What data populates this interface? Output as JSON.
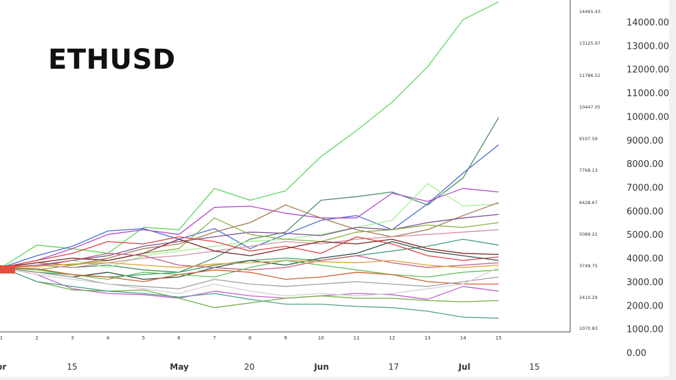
{
  "chart_data": {
    "type": "line",
    "title": "ETHUSD",
    "xlabel": "",
    "ylabel": "",
    "ylim": [
      0,
      15000
    ],
    "grid": false,
    "legend": "none",
    "x": [
      1,
      2,
      3,
      4,
      5,
      6,
      7,
      8,
      9,
      10,
      11,
      12,
      13,
      14,
      15
    ],
    "x_tick_labels": [
      "1",
      "2",
      "3",
      "4",
      "5",
      "6",
      "7",
      "8",
      "9",
      "10",
      "11",
      "12",
      "13",
      "14",
      "15"
    ],
    "date_tick_labels": [
      "pr",
      "15",
      "May",
      "20",
      "Jun",
      "17",
      "Jul",
      "15"
    ],
    "right_axis_ticks": [
      0,
      1000,
      2000,
      3000,
      4000,
      5000,
      6000,
      7000,
      8000,
      9000,
      10000,
      11000,
      12000,
      13000,
      14000
    ],
    "right_axis_labels": [
      "0.00",
      "1000.00",
      "2000.00",
      "3000.00",
      "4000.00",
      "5000.00",
      "6000.00",
      "7000.00",
      "8000.00",
      "9000.00",
      "10000.00",
      "11000.00",
      "12000.00",
      "13000.00",
      "14000.00"
    ],
    "inner_axis_labels": [
      "1070.83",
      "2410.29",
      "3749.75",
      "5089.21",
      "6428.67",
      "7768.13",
      "9107.59",
      "10447.05",
      "11786.51",
      "13125.97",
      "14465.43"
    ],
    "series": [
      {
        "color": "#5cd65c",
        "values": [
          3600,
          4550,
          4400,
          4200,
          5300,
          5200,
          6950,
          6450,
          6850,
          8300,
          9400,
          10600,
          12100,
          14100,
          14850
        ]
      },
      {
        "color": "#4a8a6a",
        "values": [
          3600,
          3700,
          3600,
          3700,
          3500,
          3400,
          4000,
          4800,
          5100,
          6450,
          6600,
          6800,
          6250,
          7400,
          9950
        ]
      },
      {
        "color": "#4a6ad6",
        "values": [
          3600,
          4100,
          4500,
          5150,
          5250,
          4800,
          5250,
          4400,
          5000,
          5600,
          5800,
          5200,
          6300,
          7600,
          8800
        ]
      },
      {
        "color": "#b04ad0",
        "values": [
          3600,
          3900,
          4400,
          5000,
          5200,
          5000,
          6150,
          6200,
          5900,
          5700,
          5700,
          6750,
          6400,
          6950,
          6800
        ]
      },
      {
        "color": "#a0f090",
        "values": [
          3600,
          3700,
          3900,
          3600,
          4100,
          4300,
          4500,
          4700,
          4800,
          5000,
          5300,
          5600,
          7150,
          6200,
          6300
        ]
      },
      {
        "color": "#a07850",
        "values": [
          3600,
          3800,
          3700,
          4000,
          4400,
          4600,
          5100,
          5500,
          6250,
          5700,
          5200,
          4900,
          5200,
          5800,
          6350
        ]
      },
      {
        "color": "#7a5090",
        "values": [
          3600,
          3650,
          3900,
          4100,
          4500,
          4700,
          4900,
          5100,
          5050,
          4950,
          5300,
          5200,
          5500,
          5700,
          5850
        ]
      },
      {
        "color": "#8ab040",
        "values": [
          3600,
          3500,
          3700,
          3900,
          4200,
          4400,
          5700,
          5000,
          4800,
          4700,
          5100,
          5200,
          5400,
          5300,
          5500
        ]
      },
      {
        "color": "#d090a0",
        "values": [
          3600,
          3700,
          3600,
          3800,
          4000,
          4100,
          4300,
          4500,
          4700,
          4600,
          4800,
          4900,
          5000,
          5100,
          5200
        ]
      },
      {
        "color": "#40a070",
        "values": [
          3600,
          3400,
          3300,
          3200,
          3300,
          3400,
          3700,
          3900,
          4000,
          3900,
          4100,
          4300,
          4500,
          4800,
          4550
        ]
      },
      {
        "color": "#e04040",
        "values": [
          3600,
          3900,
          4200,
          4700,
          4600,
          4900,
          4700,
          4300,
          4500,
          4200,
          4900,
          4600,
          4100,
          3900,
          4050
        ]
      },
      {
        "color": "#802020",
        "values": [
          3600,
          3800,
          4000,
          3900,
          4200,
          4800,
          4300,
          4100,
          4400,
          4700,
          4600,
          4800,
          4400,
          4200,
          4150
        ]
      },
      {
        "color": "#305040",
        "values": [
          3600,
          3400,
          3200,
          3400,
          3100,
          3200,
          3600,
          3900,
          3700,
          4000,
          4200,
          4700,
          4300,
          4100,
          3900
        ]
      },
      {
        "color": "#c06080",
        "values": [
          3600,
          3700,
          3900,
          4200,
          4100,
          3700,
          3600,
          3500,
          3600,
          3900,
          4100,
          3800,
          3600,
          3700,
          3800
        ]
      },
      {
        "color": "#e0a030",
        "values": [
          3600,
          3650,
          3750,
          3800,
          3700,
          3600,
          3750,
          3800,
          3900,
          3850,
          3800,
          3900,
          3700,
          3600,
          3700
        ]
      },
      {
        "color": "#60c060",
        "values": [
          3600,
          3500,
          3300,
          3100,
          3400,
          3300,
          3200,
          3600,
          3900,
          3700,
          3500,
          3300,
          3200,
          3400,
          3500
        ]
      },
      {
        "color": "#d06030",
        "values": [
          3600,
          3550,
          3300,
          3200,
          3000,
          3300,
          3500,
          3400,
          3100,
          3200,
          3400,
          3300,
          3000,
          2900,
          2900
        ]
      },
      {
        "color": "#a0a0a0",
        "values": [
          3600,
          3400,
          3200,
          2900,
          2800,
          2700,
          3100,
          2900,
          2800,
          2900,
          3000,
          2900,
          2800,
          3000,
          3200
        ]
      },
      {
        "color": "#c060d0",
        "values": [
          3600,
          3300,
          2700,
          2500,
          2450,
          2300,
          2600,
          2400,
          2300,
          2400,
          2500,
          2450,
          2250,
          2800,
          2600
        ]
      },
      {
        "color": "#70b040",
        "values": [
          3600,
          3000,
          2650,
          2600,
          2650,
          2300,
          1900,
          2100,
          2300,
          2400,
          2300,
          2300,
          2200,
          2150,
          2200
        ]
      },
      {
        "color": "#50a090",
        "values": [
          3600,
          3000,
          2800,
          2600,
          2500,
          2350,
          2500,
          2250,
          2050,
          2050,
          1950,
          1900,
          1750,
          1500,
          1450
        ]
      },
      {
        "color": "#d0d0d0",
        "values": [
          3600,
          3300,
          3100,
          2900,
          2700,
          2500,
          2900,
          2600,
          2400,
          2500,
          2400,
          2500,
          2700,
          2900,
          3600
        ]
      }
    ]
  }
}
